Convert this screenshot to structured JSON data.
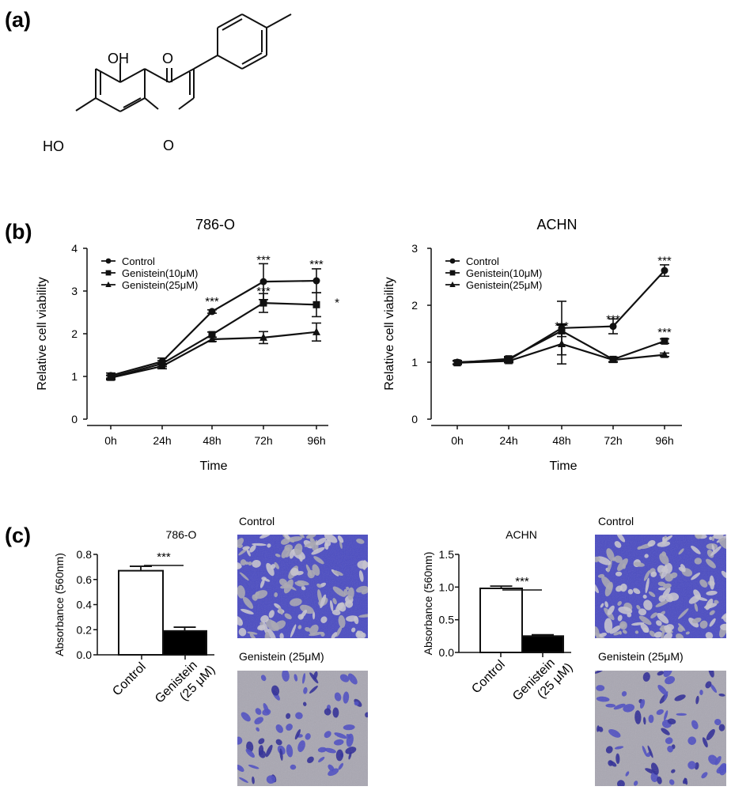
{
  "panels": {
    "a": {
      "label": "(a)"
    },
    "b": {
      "label": "(b)"
    },
    "c": {
      "label": "(c)"
    }
  },
  "molecule": {
    "oh_top": "OH",
    "oh_left": "HO",
    "carbonyl_o": "O",
    "ring_o": "O"
  },
  "chart_data": [
    {
      "id": "line_786o",
      "type": "line",
      "title": "786-O",
      "xlabel": "Time",
      "ylabel": "Relative cell viability",
      "categories": [
        "0h",
        "24h",
        "48h",
        "72h",
        "96h"
      ],
      "ylim": [
        0,
        4
      ],
      "yticks": [
        "0",
        "1",
        "2",
        "3",
        "4"
      ],
      "legend_position": "top-left",
      "series": [
        {
          "name": "Control",
          "marker": "circle",
          "values": [
            1.02,
            1.35,
            2.52,
            3.22,
            3.24
          ],
          "errors": [
            0.06,
            0.08,
            0.04,
            0.42,
            0.28
          ]
        },
        {
          "name": "Genistein(10μM)",
          "marker": "square",
          "values": [
            0.98,
            1.3,
            1.98,
            2.72,
            2.68
          ],
          "errors": [
            0.05,
            0.07,
            0.06,
            0.22,
            0.28
          ]
        },
        {
          "name": "Genistein(25μM)",
          "marker": "triangle",
          "values": [
            0.97,
            1.24,
            1.87,
            1.91,
            2.04
          ],
          "errors": [
            0.05,
            0.06,
            0.05,
            0.14,
            0.21
          ]
        }
      ],
      "annotations": [
        {
          "text": "***",
          "x": "48h",
          "y": 2.78
        },
        {
          "text": "***",
          "x": "72h",
          "y": 3.75
        },
        {
          "text": "***",
          "x": "72h",
          "y": 3.02
        },
        {
          "text": "***",
          "x": "96h",
          "y": 3.65
        },
        {
          "text": "*",
          "x": "96h",
          "y": 2.75
        }
      ]
    },
    {
      "id": "line_achn",
      "type": "line",
      "title": "ACHN",
      "xlabel": "Time",
      "ylabel": "Relative cell viability",
      "categories": [
        "0h",
        "24h",
        "48h",
        "72h",
        "96h"
      ],
      "ylim": [
        0,
        3
      ],
      "yticks": [
        "0",
        "1",
        "2",
        "3"
      ],
      "legend_position": "top-left",
      "series": [
        {
          "name": "Control",
          "marker": "circle",
          "values": [
            1.0,
            1.04,
            1.6,
            1.63,
            2.61
          ],
          "errors": [
            0.03,
            0.04,
            0.47,
            0.13,
            0.1
          ]
        },
        {
          "name": "Genistein(10μM)",
          "marker": "square",
          "values": [
            0.99,
            1.06,
            1.55,
            1.05,
            1.37
          ],
          "errors": [
            0.03,
            0.04,
            0.1,
            0.04,
            0.04
          ]
        },
        {
          "name": "Genistein(25μM)",
          "marker": "triangle",
          "values": [
            0.99,
            1.02,
            1.32,
            1.04,
            1.13
          ],
          "errors": [
            0.03,
            0.03,
            0.35,
            0.04,
            0.03
          ]
        }
      ],
      "annotations": [
        {
          "text": "***",
          "x": "48h",
          "y": 1.65
        },
        {
          "text": "***",
          "x": "72h",
          "y": 1.77
        },
        {
          "text": "***",
          "x": "96h",
          "y": 2.8
        },
        {
          "text": "***",
          "x": "96h",
          "y": 1.54
        }
      ]
    },
    {
      "id": "bar_786o",
      "type": "bar",
      "title": "786-O",
      "ylabel": "Absorbance (560nm)",
      "categories": [
        "Control",
        "Genistein (25 μM)"
      ],
      "values": [
        0.67,
        0.19
      ],
      "errors": [
        0.035,
        0.03
      ],
      "colors": [
        "#ffffff",
        "#000000"
      ],
      "ylim": [
        0,
        0.8
      ],
      "yticks": [
        "0.0",
        "0.2",
        "0.4",
        "0.6",
        "0.8"
      ],
      "significance": "***"
    },
    {
      "id": "bar_achn",
      "type": "bar",
      "title": "ACHN",
      "ylabel": "Absorbance (560nm)",
      "categories": [
        "Control",
        "Genistein (25 μM)"
      ],
      "values": [
        0.98,
        0.25
      ],
      "errors": [
        0.035,
        0.02
      ],
      "colors": [
        "#ffffff",
        "#000000"
      ],
      "ylim": [
        0,
        1.5
      ],
      "yticks": [
        "0.0",
        "0.5",
        "1.0",
        "1.5"
      ],
      "significance": "***"
    }
  ],
  "micrographs": [
    {
      "id": "m786_control",
      "caption": "Control",
      "density": "high"
    },
    {
      "id": "m786_gen",
      "caption": "Genistein (25μM)",
      "density": "low"
    },
    {
      "id": "machn_control",
      "caption": "Control",
      "density": "high"
    },
    {
      "id": "machn_gen",
      "caption": "Genistein (25μM)",
      "density": "low"
    }
  ],
  "colors": {
    "stain": "#4b4cc2",
    "stain_dark": "#2c2a96",
    "background_gray": "#a9a7b2",
    "ink": "#111111"
  }
}
